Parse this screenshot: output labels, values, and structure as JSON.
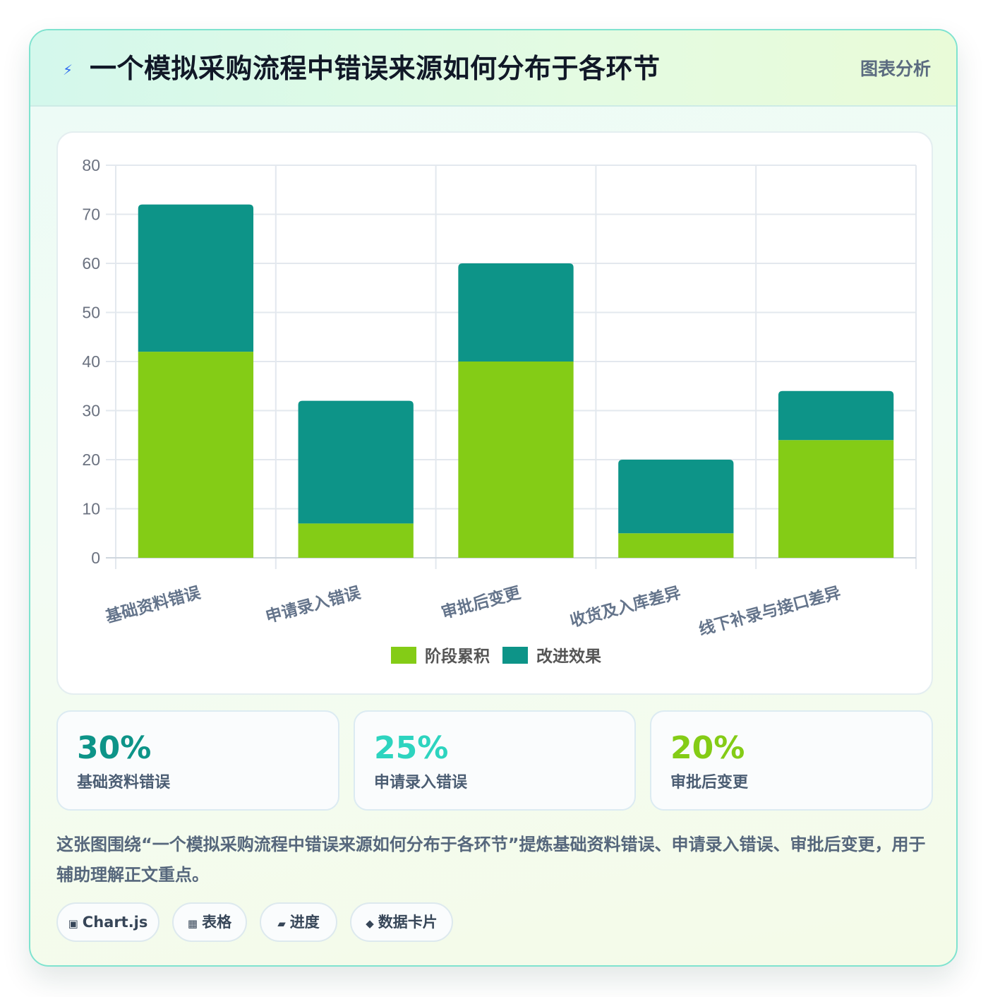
{
  "header": {
    "icon": "lightning-icon",
    "title": "一个模拟采购流程中错误来源如何分布于各环节",
    "tag": "图表分析"
  },
  "chart_data": {
    "type": "bar",
    "stacked": true,
    "categories": [
      "基础资料错误",
      "申请录入错误",
      "审批后变更",
      "收货及入库差异",
      "线下补录与接口差异"
    ],
    "series": [
      {
        "name": "阶段累积",
        "values": [
          42,
          7,
          40,
          5,
          24
        ],
        "color": "#84cc16"
      },
      {
        "name": "改进效果",
        "values": [
          30,
          25,
          20,
          15,
          10
        ],
        "color": "#0d9488"
      }
    ],
    "ylim": [
      0,
      80
    ],
    "yticks": [
      0,
      10,
      20,
      30,
      40,
      50,
      60,
      70,
      80
    ],
    "grid": true,
    "legend_position": "bottom"
  },
  "stats": [
    {
      "value": "30%",
      "label": "基础资料错误",
      "color": "#0d9488"
    },
    {
      "value": "25%",
      "label": "申请录入错误",
      "color": "#2dd4bf"
    },
    {
      "value": "20%",
      "label": "审批后变更",
      "color": "#84cc16"
    }
  ],
  "description": "这张图围绕“一个模拟采购流程中错误来源如何分布于各环节”提炼基础资料错误、申请录入错误、审批后变更，用于辅助理解正文重点。",
  "tags": [
    {
      "icon": "▣",
      "label": "Chart.js"
    },
    {
      "icon": "▦",
      "label": "表格"
    },
    {
      "icon": "▰",
      "label": "进度"
    },
    {
      "icon": "◆",
      "label": "数据卡片"
    }
  ]
}
